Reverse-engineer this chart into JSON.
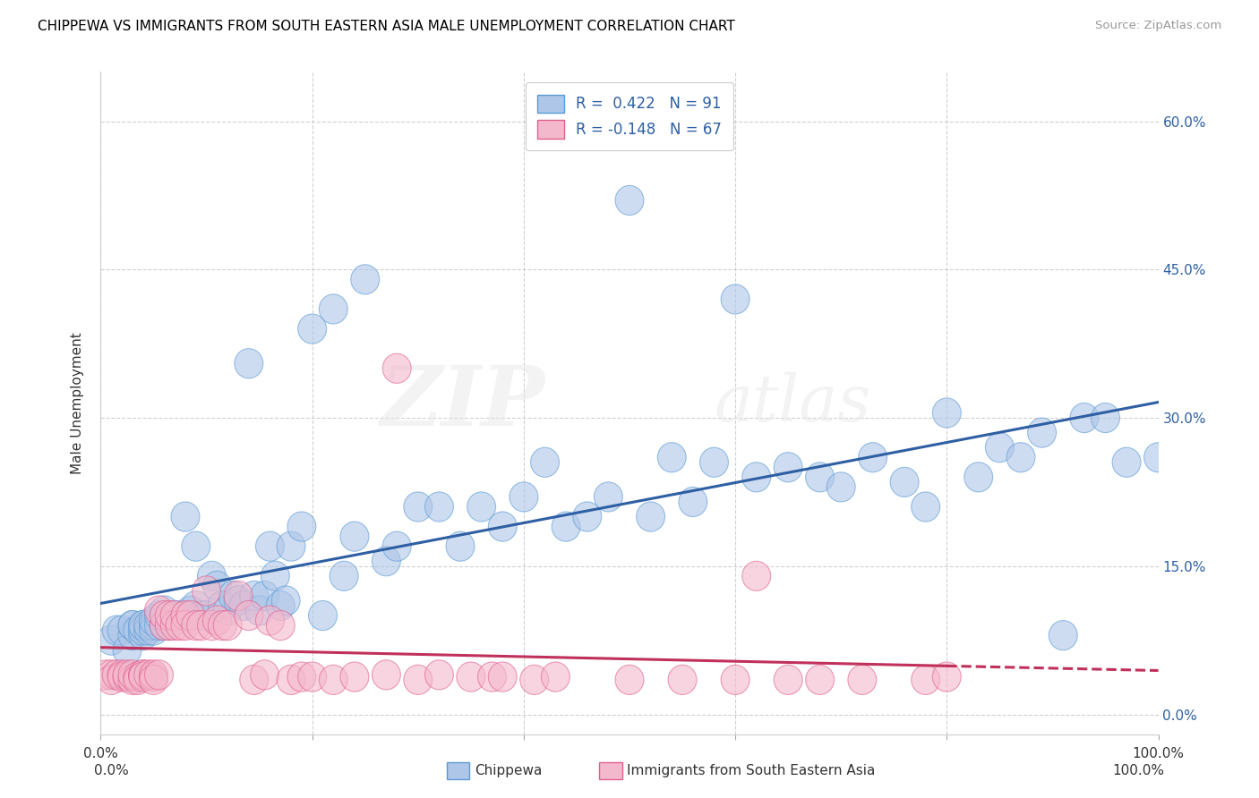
{
  "title": "CHIPPEWA VS IMMIGRANTS FROM SOUTH EASTERN ASIA MALE UNEMPLOYMENT CORRELATION CHART",
  "source": "Source: ZipAtlas.com",
  "ylabel": "Male Unemployment",
  "y_tick_labels": [
    "0.0%",
    "15.0%",
    "30.0%",
    "45.0%",
    "60.0%"
  ],
  "y_tick_values": [
    0.0,
    0.15,
    0.3,
    0.45,
    0.6
  ],
  "xlim": [
    0.0,
    1.0
  ],
  "ylim": [
    -0.02,
    0.65
  ],
  "chippewa_color": "#aec6e8",
  "chippewa_edge_color": "#5b9bd5",
  "chippewa_line_color": "#2e5fa3",
  "immigrants_color": "#f4b8cc",
  "immigrants_edge_color": "#e06090",
  "immigrants_line_color": "#c0305a",
  "chippewa_R": 0.422,
  "chippewa_N": 91,
  "immigrants_R": -0.148,
  "immigrants_N": 67,
  "watermark": "ZIPatlas",
  "background_color": "#ffffff",
  "grid_color": "#cccccc",
  "chippewa_x": [
    0.01,
    0.015,
    0.02,
    0.025,
    0.03,
    0.03,
    0.03,
    0.035,
    0.04,
    0.04,
    0.04,
    0.04,
    0.045,
    0.045,
    0.05,
    0.05,
    0.05,
    0.055,
    0.055,
    0.06,
    0.06,
    0.065,
    0.065,
    0.07,
    0.07,
    0.075,
    0.08,
    0.08,
    0.085,
    0.09,
    0.09,
    0.095,
    0.1,
    0.105,
    0.11,
    0.115,
    0.12,
    0.125,
    0.13,
    0.135,
    0.14,
    0.145,
    0.15,
    0.155,
    0.16,
    0.165,
    0.17,
    0.175,
    0.18,
    0.19,
    0.2,
    0.21,
    0.22,
    0.23,
    0.24,
    0.25,
    0.27,
    0.28,
    0.3,
    0.32,
    0.34,
    0.36,
    0.38,
    0.4,
    0.42,
    0.44,
    0.46,
    0.48,
    0.5,
    0.52,
    0.54,
    0.56,
    0.58,
    0.6,
    0.62,
    0.65,
    0.68,
    0.7,
    0.73,
    0.76,
    0.78,
    0.8,
    0.83,
    0.85,
    0.87,
    0.89,
    0.91,
    0.93,
    0.95,
    0.97,
    1.0
  ],
  "chippewa_y": [
    0.075,
    0.085,
    0.085,
    0.065,
    0.08,
    0.09,
    0.09,
    0.085,
    0.08,
    0.09,
    0.085,
    0.09,
    0.085,
    0.09,
    0.09,
    0.085,
    0.095,
    0.09,
    0.1,
    0.09,
    0.105,
    0.09,
    0.095,
    0.095,
    0.1,
    0.1,
    0.1,
    0.2,
    0.105,
    0.11,
    0.17,
    0.1,
    0.1,
    0.14,
    0.13,
    0.11,
    0.105,
    0.12,
    0.115,
    0.11,
    0.355,
    0.12,
    0.105,
    0.12,
    0.17,
    0.14,
    0.11,
    0.115,
    0.17,
    0.19,
    0.39,
    0.1,
    0.41,
    0.14,
    0.18,
    0.44,
    0.155,
    0.17,
    0.21,
    0.21,
    0.17,
    0.21,
    0.19,
    0.22,
    0.255,
    0.19,
    0.2,
    0.22,
    0.52,
    0.2,
    0.26,
    0.215,
    0.255,
    0.42,
    0.24,
    0.25,
    0.24,
    0.23,
    0.26,
    0.235,
    0.21,
    0.305,
    0.24,
    0.27,
    0.26,
    0.285,
    0.08,
    0.3,
    0.3,
    0.255,
    0.26
  ],
  "immigrants_x": [
    0.005,
    0.01,
    0.01,
    0.015,
    0.02,
    0.02,
    0.025,
    0.025,
    0.03,
    0.03,
    0.035,
    0.035,
    0.04,
    0.04,
    0.04,
    0.045,
    0.05,
    0.05,
    0.05,
    0.055,
    0.055,
    0.06,
    0.06,
    0.065,
    0.065,
    0.07,
    0.07,
    0.075,
    0.08,
    0.08,
    0.085,
    0.09,
    0.095,
    0.1,
    0.105,
    0.11,
    0.115,
    0.12,
    0.13,
    0.14,
    0.145,
    0.155,
    0.16,
    0.17,
    0.18,
    0.19,
    0.2,
    0.22,
    0.24,
    0.27,
    0.28,
    0.3,
    0.32,
    0.35,
    0.37,
    0.38,
    0.41,
    0.43,
    0.5,
    0.55,
    0.6,
    0.62,
    0.65,
    0.68,
    0.72,
    0.78,
    0.8
  ],
  "immigrants_y": [
    0.04,
    0.04,
    0.035,
    0.04,
    0.04,
    0.038,
    0.038,
    0.04,
    0.035,
    0.04,
    0.038,
    0.035,
    0.04,
    0.04,
    0.038,
    0.04,
    0.038,
    0.04,
    0.035,
    0.04,
    0.105,
    0.09,
    0.1,
    0.09,
    0.1,
    0.09,
    0.1,
    0.09,
    0.1,
    0.09,
    0.1,
    0.09,
    0.09,
    0.125,
    0.09,
    0.095,
    0.09,
    0.09,
    0.12,
    0.1,
    0.035,
    0.04,
    0.095,
    0.09,
    0.035,
    0.038,
    0.038,
    0.035,
    0.038,
    0.04,
    0.35,
    0.035,
    0.04,
    0.038,
    0.038,
    0.038,
    0.035,
    0.038,
    0.035,
    0.035,
    0.035,
    0.14,
    0.035,
    0.035,
    0.035,
    0.035,
    0.038
  ]
}
